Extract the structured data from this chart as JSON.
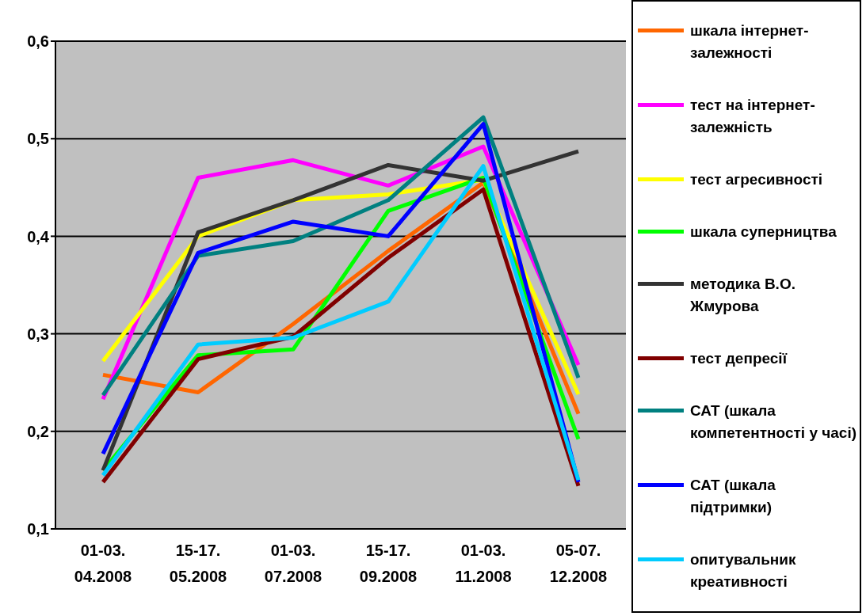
{
  "chart_data": {
    "type": "line",
    "categories": [
      "01-03. 04.2008",
      "15-17. 05.2008",
      "01-03. 07.2008",
      "15-17. 09.2008",
      "01-03. 11.2008",
      "05-07. 12.2008"
    ],
    "series": [
      {
        "name": "шкала інтернет-залежності",
        "color": "#ff6600",
        "values": [
          0.258,
          0.24,
          0.31,
          0.385,
          0.455,
          0.218
        ]
      },
      {
        "name": "тест на інтернет-залежність",
        "color": "#ff00ff",
        "values": [
          0.233,
          0.46,
          0.478,
          0.452,
          0.492,
          0.268
        ]
      },
      {
        "name": "тест агресивності",
        "color": "#ffff00",
        "values": [
          0.272,
          0.4,
          0.437,
          0.443,
          0.458,
          0.238
        ]
      },
      {
        "name": "шкала суперництва",
        "color": "#00ff00",
        "values": [
          0.16,
          0.278,
          0.284,
          0.426,
          0.46,
          0.192
        ]
      },
      {
        "name": "методика В.О. Жмурова",
        "color": "#333333",
        "values": [
          0.16,
          0.404,
          0.437,
          0.473,
          0.457,
          0.487
        ]
      },
      {
        "name": "тест депресії",
        "color": "#800000",
        "values": [
          0.148,
          0.274,
          0.297,
          0.378,
          0.448,
          0.144
        ]
      },
      {
        "name": "САТ (шкала компетентності у часі)",
        "color": "#008080",
        "values": [
          0.237,
          0.38,
          0.395,
          0.437,
          0.522,
          0.255
        ]
      },
      {
        "name": "САТ (шкала підтримки)",
        "color": "#0000ff",
        "values": [
          0.177,
          0.383,
          0.415,
          0.4,
          0.515,
          0.148
        ]
      },
      {
        "name": "опитувальник креативності",
        "color": "#00ccff",
        "values": [
          0.155,
          0.289,
          0.296,
          0.333,
          0.472,
          0.15
        ]
      }
    ],
    "ylim": [
      0.1,
      0.6
    ],
    "yticks": [
      {
        "value": 0.1,
        "label": "0,1"
      },
      {
        "value": 0.2,
        "label": "0,2"
      },
      {
        "value": 0.3,
        "label": "0,3"
      },
      {
        "value": 0.4,
        "label": "0,4"
      },
      {
        "value": 0.5,
        "label": "0,5"
      },
      {
        "value": 0.6,
        "label": "0,6"
      }
    ],
    "grid": "y",
    "legend": "right",
    "marker": "none",
    "line_style": "solid"
  }
}
